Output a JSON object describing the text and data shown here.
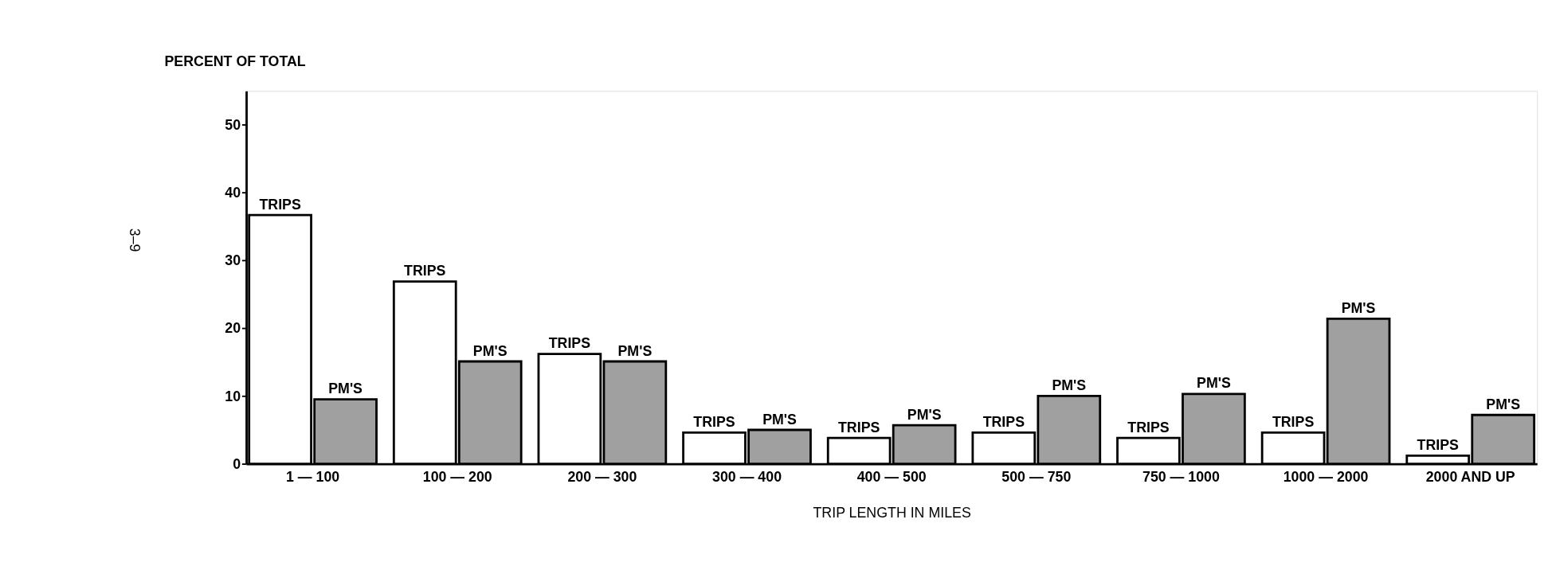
{
  "chart_data": {
    "type": "bar",
    "ylabel": "PERCENT OF TOTAL",
    "xlabel": "TRIP LENGTH IN MILES",
    "categories": [
      "1 — 100",
      "100 — 200",
      "200 — 300",
      "300 — 400",
      "400 — 500",
      "500 — 750",
      "750 — 1000",
      "1000 — 2000",
      "2000 AND UP"
    ],
    "series": [
      {
        "name": "TRIPS",
        "color": "#ffffff",
        "values": [
          36.7,
          26.9,
          16.2,
          4.6,
          3.8,
          4.6,
          3.8,
          4.6,
          1.2
        ]
      },
      {
        "name": "PM'S",
        "color": "#a0a0a0",
        "values": [
          9.5,
          15.1,
          15.1,
          5.0,
          5.7,
          10.0,
          10.3,
          21.4,
          7.2
        ]
      }
    ],
    "ylim": [
      0,
      55
    ],
    "yticks": [
      0,
      10,
      20,
      30,
      40,
      50
    ],
    "grid": false,
    "legend": false,
    "annotations": [
      "3–9"
    ]
  }
}
